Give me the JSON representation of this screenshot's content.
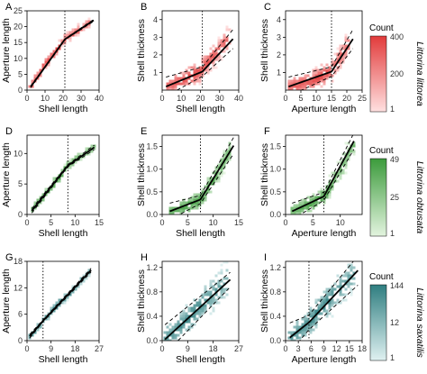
{
  "colors": {
    "row1": "#e23b3b",
    "row1_light": "#ffe0e0",
    "row2": "#3c9b3c",
    "row2_light": "#e3f4df",
    "row3": "#2f7e80",
    "row3_light": "#dff1f1",
    "fit": "#000000"
  },
  "chart_data": [
    {
      "type": "scatter",
      "panel": "A",
      "xlabel": "Shell length",
      "ylabel": "Aperture length",
      "xlim": [
        0,
        40
      ],
      "ylim": [
        0,
        25
      ],
      "xticks": [
        0,
        10,
        20,
        30,
        40
      ],
      "yticks": [
        0,
        5,
        10,
        15,
        20,
        25
      ],
      "breakpoint": 21,
      "fit": [
        [
          2,
          1
        ],
        [
          21,
          16
        ],
        [
          37,
          22
        ]
      ],
      "band": 0.25,
      "row": 1,
      "cloud": {
        "pts": [
          [
            2,
            1
          ],
          [
            6,
            4.5
          ],
          [
            10,
            8
          ],
          [
            14,
            11
          ],
          [
            18,
            14
          ],
          [
            21,
            16
          ],
          [
            25,
            17.5
          ],
          [
            30,
            19.5
          ],
          [
            35,
            21.5
          ]
        ],
        "spread": 1.3
      }
    },
    {
      "type": "scatter",
      "panel": "B",
      "xlabel": "Shell length",
      "ylabel": "Shell thickness",
      "xlim": [
        0,
        40
      ],
      "ylim": [
        0,
        4.5
      ],
      "xticks": [
        0,
        10,
        20,
        30,
        40
      ],
      "yticks": [
        1,
        2,
        3,
        4
      ],
      "breakpoint": 21,
      "fit": [
        [
          2,
          0.2
        ],
        [
          21,
          1.05
        ],
        [
          37,
          2.9
        ]
      ],
      "band": 0.45,
      "row": 1,
      "cloud": {
        "pts": [
          [
            2,
            0.2
          ],
          [
            6,
            0.35
          ],
          [
            10,
            0.5
          ],
          [
            15,
            0.8
          ],
          [
            20,
            1.1
          ],
          [
            24,
            1.6
          ],
          [
            28,
            2.1
          ],
          [
            32,
            2.6
          ],
          [
            35,
            3.0
          ]
        ],
        "spread": 0.65
      }
    },
    {
      "type": "scatter",
      "panel": "C",
      "xlabel": "Aperture length",
      "ylabel": "Shell thickness",
      "xlim": [
        0,
        25
      ],
      "ylim": [
        0,
        4.5
      ],
      "xticks": [
        0,
        5,
        10,
        15,
        20,
        25
      ],
      "yticks": [
        1,
        2,
        3,
        4
      ],
      "breakpoint": 15,
      "fit": [
        [
          1,
          0.2
        ],
        [
          15,
          1.05
        ],
        [
          22,
          2.9
        ]
      ],
      "band": 0.45,
      "row": 1,
      "cloud": {
        "pts": [
          [
            1,
            0.2
          ],
          [
            4,
            0.3
          ],
          [
            8,
            0.5
          ],
          [
            12,
            0.8
          ],
          [
            15,
            1.1
          ],
          [
            17,
            1.6
          ],
          [
            19,
            2.2
          ],
          [
            21,
            2.8
          ]
        ],
        "spread": 0.65
      }
    },
    {
      "type": "scatter",
      "panel": "D",
      "xlabel": "Shell length",
      "ylabel": "Aperture length",
      "xlim": [
        0,
        15
      ],
      "ylim": [
        0,
        13
      ],
      "xticks": [
        0,
        5,
        10,
        15
      ],
      "yticks": [
        0,
        5,
        10
      ],
      "breakpoint": 8.5,
      "fit": [
        [
          1,
          0.6
        ],
        [
          8.5,
          8
        ],
        [
          14,
          11
        ]
      ],
      "band": 0.3,
      "row": 2,
      "cloud": {
        "pts": [
          [
            1,
            0.6
          ],
          [
            3,
            2.5
          ],
          [
            5,
            4.5
          ],
          [
            7,
            6.5
          ],
          [
            8.5,
            8
          ],
          [
            10,
            9
          ],
          [
            12,
            10
          ],
          [
            14,
            11
          ]
        ],
        "spread": 0.6
      }
    },
    {
      "type": "scatter",
      "panel": "E",
      "xlabel": "Shell length",
      "ylabel": "Shell thickness",
      "xlim": [
        0,
        15
      ],
      "ylim": [
        0,
        1.75
      ],
      "xticks": [
        0,
        5,
        10,
        15
      ],
      "yticks": [
        0.0,
        0.5,
        1.0,
        1.5
      ],
      "breakpoint": 7.5,
      "fit": [
        [
          1.5,
          0.07
        ],
        [
          7.5,
          0.33
        ],
        [
          14,
          1.52
        ]
      ],
      "band": 0.15,
      "row": 2,
      "cloud": {
        "pts": [
          [
            1.5,
            0.07
          ],
          [
            4,
            0.15
          ],
          [
            6,
            0.25
          ],
          [
            7.5,
            0.33
          ],
          [
            9,
            0.6
          ],
          [
            10.5,
            0.85
          ],
          [
            12,
            1.15
          ],
          [
            13.5,
            1.45
          ]
        ],
        "spread": 0.22
      }
    },
    {
      "type": "scatter",
      "panel": "F",
      "xlabel": "Aperture length",
      "ylabel": "Shell thickness",
      "xlim": [
        0,
        14
      ],
      "ylim": [
        0,
        1.75
      ],
      "xticks": [
        0,
        5,
        10
      ],
      "yticks": [
        0.0,
        0.5,
        1.0,
        1.5
      ],
      "breakpoint": 7,
      "fit": [
        [
          1.2,
          0.07
        ],
        [
          7,
          0.4
        ],
        [
          12.5,
          1.62
        ]
      ],
      "band": 0.15,
      "row": 2,
      "cloud": {
        "pts": [
          [
            1.2,
            0.07
          ],
          [
            3,
            0.15
          ],
          [
            5,
            0.25
          ],
          [
            7,
            0.4
          ],
          [
            8.5,
            0.7
          ],
          [
            10,
            1.0
          ],
          [
            11.5,
            1.35
          ],
          [
            12.5,
            1.55
          ]
        ],
        "spread": 0.22
      }
    },
    {
      "type": "scatter",
      "panel": "G",
      "xlabel": "Shell length",
      "ylabel": "Aperture length",
      "xlim": [
        0,
        27
      ],
      "ylim": [
        0,
        18
      ],
      "xticks": [
        0,
        9,
        18,
        27
      ],
      "yticks": [
        0,
        6,
        12,
        18
      ],
      "breakpoint": 6,
      "fit": [
        [
          1,
          1
        ],
        [
          6,
          4.5
        ],
        [
          24,
          16
        ]
      ],
      "band": 0.35,
      "row": 3,
      "cloud": {
        "pts": [
          [
            1,
            1
          ],
          [
            3,
            2.2
          ],
          [
            6,
            4.5
          ],
          [
            9,
            6.5
          ],
          [
            12,
            8.5
          ],
          [
            15,
            10
          ],
          [
            18,
            12
          ],
          [
            21,
            14
          ],
          [
            24,
            16
          ]
        ],
        "spread": 0.7
      }
    },
    {
      "type": "scatter",
      "panel": "H",
      "xlabel": "Shell length",
      "ylabel": "Shell thickness",
      "xlim": [
        0,
        27
      ],
      "ylim": [
        0,
        1.3
      ],
      "xticks": [
        0,
        9,
        18,
        27
      ],
      "yticks": [
        0.0,
        0.4,
        0.8,
        1.2
      ],
      "breakpoint": null,
      "fit": [
        [
          1,
          0.02
        ],
        [
          24,
          1.0
        ]
      ],
      "band": 0.2,
      "row": 3,
      "cloud": {
        "pts": [
          [
            1,
            0.02
          ],
          [
            4,
            0.12
          ],
          [
            7,
            0.25
          ],
          [
            10,
            0.4
          ],
          [
            13,
            0.55
          ],
          [
            16,
            0.68
          ],
          [
            19,
            0.8
          ],
          [
            23,
            0.98
          ]
        ],
        "spread": 0.28
      }
    },
    {
      "type": "scatter",
      "panel": "I",
      "xlabel": "Aperture length",
      "ylabel": "Shell thickness",
      "xlim": [
        0,
        18
      ],
      "ylim": [
        0,
        1.3
      ],
      "xticks": [
        0,
        3,
        6,
        9,
        12,
        15,
        18
      ],
      "yticks": [
        0.0,
        0.4,
        0.8,
        1.2
      ],
      "breakpoint": 5.5,
      "fit": [
        [
          1,
          0.05
        ],
        [
          5.5,
          0.3
        ],
        [
          17,
          1.15
        ]
      ],
      "band": 0.2,
      "row": 3,
      "cloud": {
        "pts": [
          [
            1,
            0.05
          ],
          [
            3,
            0.15
          ],
          [
            5.5,
            0.3
          ],
          [
            8,
            0.5
          ],
          [
            10,
            0.65
          ],
          [
            12,
            0.8
          ],
          [
            14,
            0.95
          ],
          [
            16,
            1.1
          ]
        ],
        "spread": 0.28
      }
    }
  ],
  "legends": [
    {
      "title": "Count",
      "ticks": [
        "400",
        "200",
        "1"
      ],
      "species": "Littorina littorea",
      "row": 1
    },
    {
      "title": "Count",
      "ticks": [
        "49",
        "25",
        "1"
      ],
      "species": "Littorina obtusata",
      "row": 2
    },
    {
      "title": "Count",
      "ticks": [
        "144",
        "12",
        "1"
      ],
      "species": "Littorina saxatilis",
      "row": 3
    }
  ]
}
